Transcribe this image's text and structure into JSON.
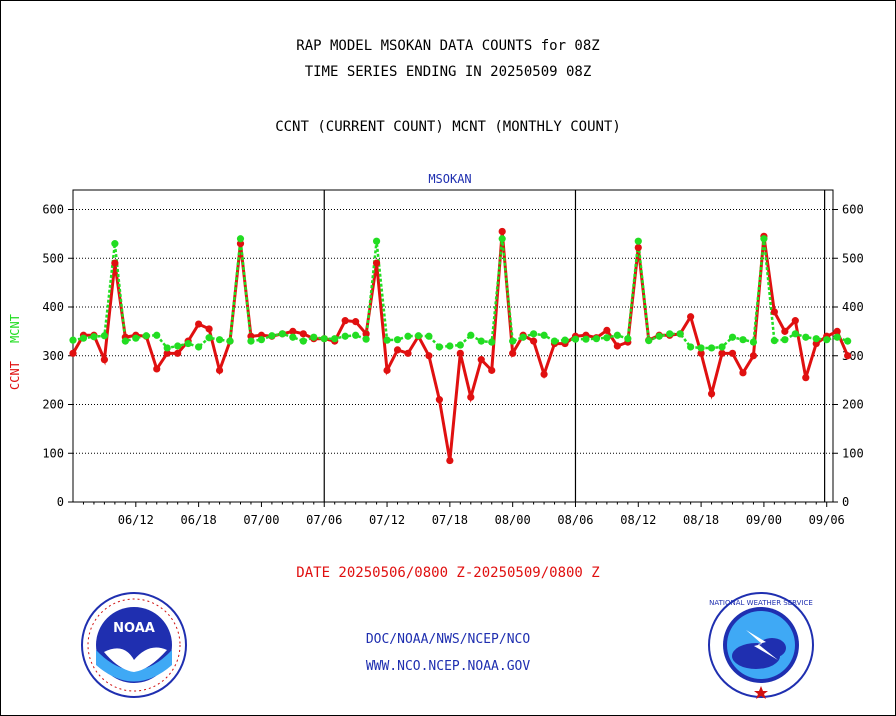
{
  "page": {
    "title_line1": "RAP MODEL MSOKAN DATA COUNTS for 08Z",
    "title_line2": "TIME SERIES ENDING IN 20250509 08Z",
    "subtitle": "CCNT (CURRENT COUNT) MCNT (MONTHLY COUNT)",
    "station_label": "MSOKAN",
    "date_range": "DATE 20250506/0800 Z-20250509/0800 Z",
    "link1": "DOC/NOAA/NWS/NCEP/NCO",
    "link2": "WWW.NCO.NCEP.NOAA.GOV",
    "noaa_logo_text": "NOAA",
    "nws_logo_text": "NATIONAL WEATHER SERVICE"
  },
  "chart_data": {
    "type": "line",
    "title": "RAP MODEL MSOKAN DATA COUNTS for 08Z",
    "ylabel_left_1": "CCNT",
    "ylabel_left_2": "MCNT",
    "ylim": [
      0,
      640
    ],
    "yticks": [
      0,
      100,
      200,
      300,
      400,
      500,
      600
    ],
    "x_tick_labels": [
      "06/12",
      "06/18",
      "07/00",
      "07/06",
      "07/12",
      "07/18",
      "08/00",
      "08/06",
      "08/12",
      "08/18",
      "09/00",
      "09/06"
    ],
    "x_tick_positions": [
      6,
      12,
      18,
      24,
      30,
      36,
      42,
      48,
      54,
      60,
      66,
      72
    ],
    "x_range": [
      0,
      72.6
    ],
    "vertical_separators": [
      24,
      48,
      71.8
    ],
    "grid": true,
    "colors": {
      "ccnt": "#e01010",
      "mcnt": "#22dd22",
      "station": "#1f2fb0",
      "axis": "#000000"
    },
    "series": [
      {
        "name": "CCNT",
        "values": [
          305,
          342,
          342,
          292,
          490,
          338,
          342,
          340,
          273,
          305,
          305,
          330,
          365,
          355,
          270,
          330,
          530,
          340,
          342,
          340,
          345,
          350,
          345,
          335,
          335,
          330,
          372,
          370,
          345,
          490,
          270,
          312,
          305,
          340,
          300,
          210,
          85,
          305,
          215,
          292,
          270,
          555,
          305,
          342,
          330,
          262,
          325,
          325,
          340,
          342,
          337,
          352,
          320,
          328,
          522,
          332,
          342,
          342,
          345,
          380,
          305,
          222,
          305,
          305,
          265,
          300,
          545,
          390,
          350,
          372,
          255,
          325,
          340,
          350,
          300
        ]
      },
      {
        "name": "MCNT",
        "values": [
          332,
          336,
          339,
          341,
          530,
          330,
          336,
          341,
          342,
          316,
          320,
          325,
          318,
          337,
          333,
          330,
          540,
          330,
          333,
          341,
          345,
          338,
          330,
          338,
          335,
          335,
          340,
          342,
          334,
          535,
          332,
          333,
          340,
          341,
          340,
          318,
          320,
          322,
          342,
          330,
          328,
          540,
          330,
          338,
          345,
          342,
          330,
          332,
          334,
          334,
          335,
          337,
          342,
          335,
          535,
          331,
          340,
          345,
          345,
          318,
          316,
          316,
          318,
          338,
          333,
          328,
          540,
          331,
          333,
          345,
          338,
          335,
          333,
          338,
          330
        ]
      }
    ]
  }
}
